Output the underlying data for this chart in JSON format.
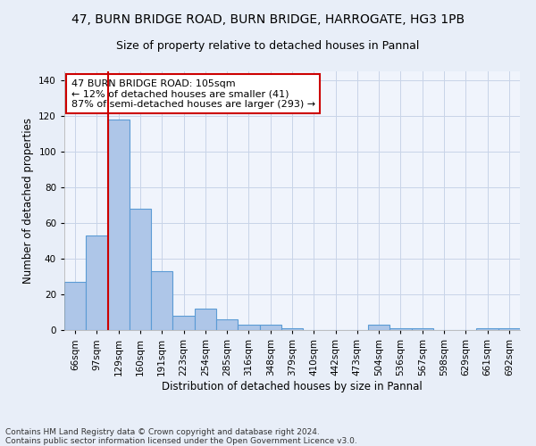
{
  "title_line1": "47, BURN BRIDGE ROAD, BURN BRIDGE, HARROGATE, HG3 1PB",
  "title_line2": "Size of property relative to detached houses in Pannal",
  "xlabel": "Distribution of detached houses by size in Pannal",
  "ylabel": "Number of detached properties",
  "footer_line1": "Contains HM Land Registry data © Crown copyright and database right 2024.",
  "footer_line2": "Contains public sector information licensed under the Open Government Licence v3.0.",
  "annotation_line1": "47 BURN BRIDGE ROAD: 105sqm",
  "annotation_line2": "← 12% of detached houses are smaller (41)",
  "annotation_line3": "87% of semi-detached houses are larger (293) →",
  "bar_labels": [
    "66sqm",
    "97sqm",
    "129sqm",
    "160sqm",
    "191sqm",
    "223sqm",
    "254sqm",
    "285sqm",
    "316sqm",
    "348sqm",
    "379sqm",
    "410sqm",
    "442sqm",
    "473sqm",
    "504sqm",
    "536sqm",
    "567sqm",
    "598sqm",
    "629sqm",
    "661sqm",
    "692sqm"
  ],
  "bar_values": [
    27,
    53,
    118,
    68,
    33,
    8,
    12,
    6,
    3,
    3,
    1,
    0,
    0,
    0,
    3,
    1,
    1,
    0,
    0,
    1,
    1
  ],
  "bar_color": "#aec6e8",
  "bar_edge_color": "#5b9bd5",
  "vline_color": "#cc0000",
  "vline_x": 1.5,
  "annotation_box_edge_color": "#cc0000",
  "annotation_box_face_color": "#ffffff",
  "ylim": [
    0,
    145
  ],
  "yticks": [
    0,
    20,
    40,
    60,
    80,
    100,
    120,
    140
  ],
  "grid_color": "#c8d4e8",
  "background_color": "#e8eef8",
  "plot_background_color": "#f0f4fc",
  "title_fontsize": 10,
  "subtitle_fontsize": 9,
  "axis_label_fontsize": 8.5,
  "tick_fontsize": 7.5,
  "annotation_fontsize": 8,
  "footer_fontsize": 6.5
}
